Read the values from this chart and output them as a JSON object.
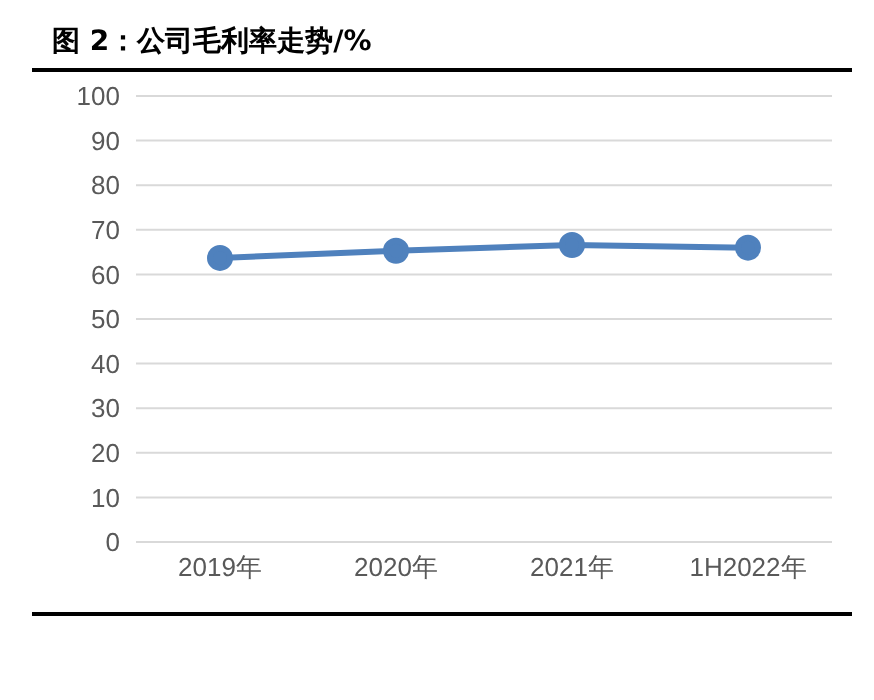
{
  "chart_data": {
    "type": "line",
    "title": "图 2：公司毛利率走势/%",
    "categories": [
      "2019年",
      "2020年",
      "2021年",
      "1H2022年"
    ],
    "series": [
      {
        "color": "#4f81bd",
        "values": [
          63.7,
          65.3,
          66.6,
          66.0
        ]
      }
    ],
    "ylim": [
      0,
      100
    ],
    "yticks": [
      0,
      10,
      20,
      30,
      40,
      50,
      60,
      70,
      80,
      90,
      100
    ],
    "grid": "y",
    "marker": "circle"
  }
}
